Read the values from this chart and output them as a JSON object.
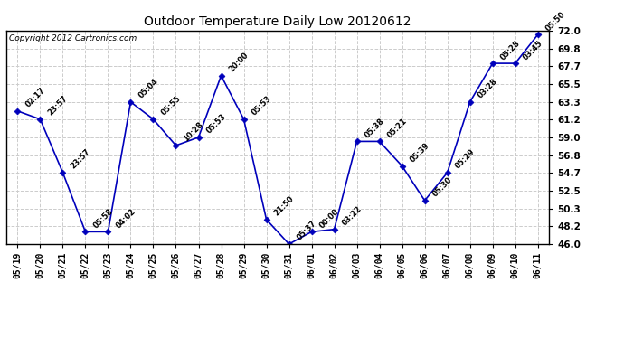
{
  "title": "Outdoor Temperature Daily Low 20120612",
  "copyright": "Copyright 2012 Cartronics.com",
  "line_color": "#0000bb",
  "marker_color": "#0000bb",
  "background_color": "#ffffff",
  "grid_color": "#cccccc",
  "ylim": [
    46.0,
    72.0
  ],
  "yticks": [
    46.0,
    48.2,
    50.3,
    52.5,
    54.7,
    56.8,
    59.0,
    61.2,
    63.3,
    65.5,
    67.7,
    69.8,
    72.0
  ],
  "x_labels": [
    "05/19",
    "05/20",
    "05/21",
    "05/22",
    "05/23",
    "05/24",
    "05/25",
    "05/26",
    "05/27",
    "05/28",
    "05/29",
    "05/30",
    "05/31",
    "06/01",
    "06/02",
    "06/03",
    "06/04",
    "06/05",
    "06/06",
    "06/07",
    "06/08",
    "06/09",
    "06/10",
    "06/11"
  ],
  "y_values": [
    62.2,
    61.2,
    54.7,
    47.5,
    47.5,
    63.3,
    61.2,
    58.0,
    59.0,
    66.5,
    61.2,
    49.0,
    46.0,
    47.5,
    47.8,
    58.5,
    58.5,
    55.5,
    51.3,
    54.7,
    63.3,
    68.0,
    68.0,
    71.5
  ],
  "point_labels": [
    "02:17",
    "23:57",
    "23:57",
    "05:58",
    "04:02",
    "05:04",
    "05:55",
    "10:28",
    "05:53",
    "20:00",
    "05:53",
    "21:50",
    "05:37",
    "00:00",
    "03:22",
    "05:38",
    "05:21",
    "05:39",
    "05:30",
    "05:29",
    "03:28",
    "05:28",
    "03:45",
    "05:50"
  ]
}
